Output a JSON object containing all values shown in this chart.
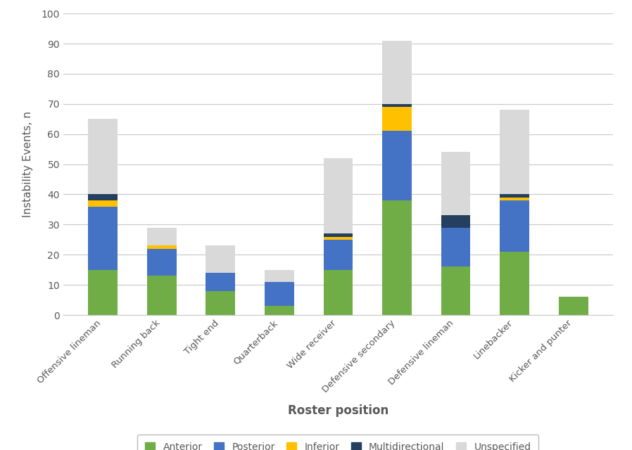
{
  "categories": [
    "Offensive lineman",
    "Running back",
    "Tight end",
    "Quarterback",
    "Wide receiver",
    "Defensive secondary",
    "Defensive lineman",
    "Linebacker",
    "Kicker and punter"
  ],
  "anterior": [
    15,
    13,
    8,
    3,
    15,
    38,
    16,
    21,
    6
  ],
  "posterior": [
    21,
    9,
    6,
    8,
    10,
    23,
    13,
    17,
    0
  ],
  "inferior": [
    2,
    1,
    0,
    0,
    1,
    8,
    0,
    1,
    0
  ],
  "multidirectional": [
    2,
    0,
    0,
    0,
    1,
    1,
    4,
    1,
    0
  ],
  "unspecified": [
    25,
    6,
    9,
    4,
    25,
    21,
    21,
    28,
    0
  ],
  "colors": {
    "anterior": "#70ad47",
    "posterior": "#4472c4",
    "inferior": "#ffc000",
    "multidirectional": "#243f60",
    "unspecified": "#d9d9d9"
  },
  "text_color": "#595959",
  "ylabel": "Instability Events, n",
  "xlabel": "Roster position",
  "ylim": [
    0,
    100
  ],
  "yticks": [
    0,
    10,
    20,
    30,
    40,
    50,
    60,
    70,
    80,
    90,
    100
  ],
  "legend_labels": [
    "Anterior",
    "Posterior",
    "Inferior",
    "Multidirectional",
    "Unspecified"
  ],
  "background_color": "#ffffff",
  "grid_color": "#c8c8c8"
}
